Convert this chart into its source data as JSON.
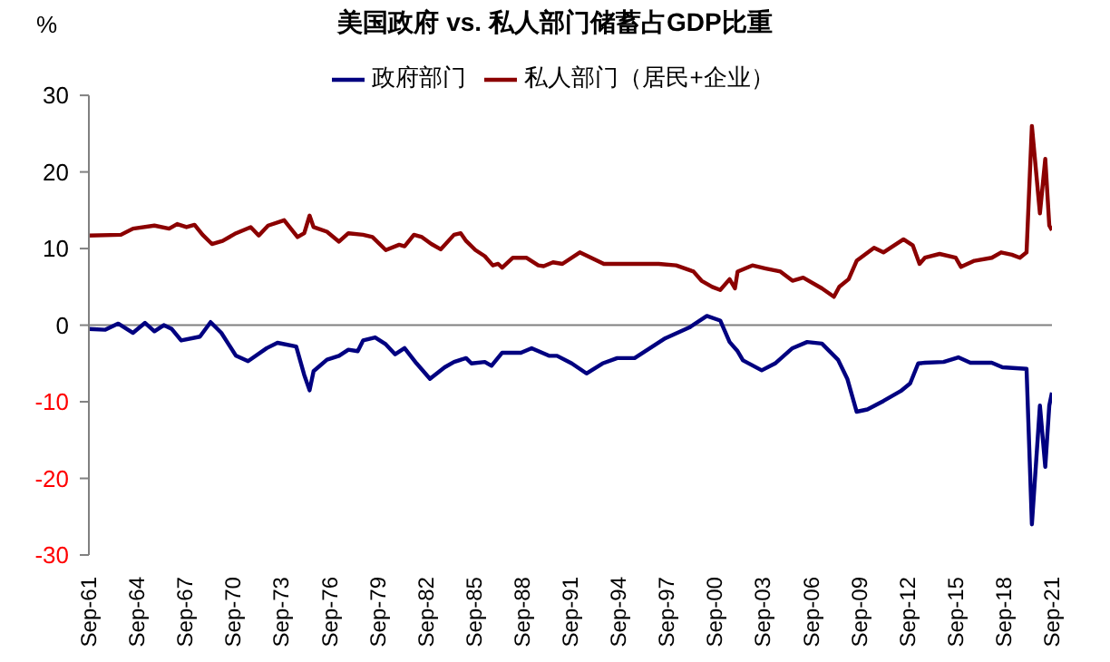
{
  "chart_data": {
    "type": "line",
    "title": "美国政府 vs. 私人部门储蓄占GDP比重",
    "ylabel": "%",
    "xlim": [
      "1961-09",
      "2021-09"
    ],
    "xticks": [
      {
        "value": "1961-09",
        "label": "Sep-61"
      },
      {
        "value": "1964-09",
        "label": "Sep-64"
      },
      {
        "value": "1967-09",
        "label": "Sep-67"
      },
      {
        "value": "1970-09",
        "label": "Sep-70"
      },
      {
        "value": "1973-09",
        "label": "Sep-73"
      },
      {
        "value": "1976-09",
        "label": "Sep-76"
      },
      {
        "value": "1979-09",
        "label": "Sep-79"
      },
      {
        "value": "1982-09",
        "label": "Sep-82"
      },
      {
        "value": "1985-09",
        "label": "Sep-85"
      },
      {
        "value": "1988-09",
        "label": "Sep-88"
      },
      {
        "value": "1991-09",
        "label": "Sep-91"
      },
      {
        "value": "1994-09",
        "label": "Sep-94"
      },
      {
        "value": "1997-09",
        "label": "Sep-97"
      },
      {
        "value": "2000-09",
        "label": "Sep-00"
      },
      {
        "value": "2003-09",
        "label": "Sep-03"
      },
      {
        "value": "2006-09",
        "label": "Sep-06"
      },
      {
        "value": "2009-09",
        "label": "Sep-09"
      },
      {
        "value": "2012-09",
        "label": "Sep-12"
      },
      {
        "value": "2015-09",
        "label": "Sep-15"
      },
      {
        "value": "2018-09",
        "label": "Sep-18"
      },
      {
        "value": "2021-09",
        "label": "Sep-21"
      }
    ],
    "ylim": [
      -30,
      30
    ],
    "yticks": [
      -30,
      -20,
      -10,
      0,
      10,
      20,
      30
    ],
    "grid": false,
    "ref_lines": [
      {
        "axis": "y",
        "value": 0,
        "color": "#808080"
      }
    ],
    "legend": "top",
    "marker": "none",
    "line_style": "solid",
    "series": [
      {
        "name": "私人部门（居民+企业）",
        "color": "#8b0000",
        "x": [
          "1961-09",
          "1963-09",
          "1964-06",
          "1965-10",
          "1966-09",
          "1967-03",
          "1967-10",
          "1968-04",
          "1968-10",
          "1969-05",
          "1970-01",
          "1970-11",
          "1971-10",
          "1972-04",
          "1972-11",
          "1973-11",
          "1974-09",
          "1975-02",
          "1975-06",
          "1975-09",
          "1976-07",
          "1977-04",
          "1977-11",
          "1978-10",
          "1979-05",
          "1980-03",
          "1981-01",
          "1981-05",
          "1981-12",
          "1982-06",
          "1983-01",
          "1983-08",
          "1984-06",
          "1984-11",
          "1985-03",
          "1985-10",
          "1986-05",
          "1986-11",
          "1987-03",
          "1987-06",
          "1988-02",
          "1988-12",
          "1989-09",
          "1990-01",
          "1990-08",
          "1991-03",
          "1992-04",
          "1993-10",
          "1995-05",
          "1997-03",
          "1998-04",
          "1999-05",
          "1999-11",
          "2000-07",
          "2001-01",
          "2001-08",
          "2001-12",
          "2002-02",
          "2003-01",
          "2003-11",
          "2004-10",
          "2005-07",
          "2006-03",
          "2007-05",
          "2008-02",
          "2008-06",
          "2009-01",
          "2009-07",
          "2010-08",
          "2011-03",
          "2012-06",
          "2013-01",
          "2013-06",
          "2013-10",
          "2014-09",
          "2015-09",
          "2016-01",
          "2016-11",
          "2017-12",
          "2018-07",
          "2019-03",
          "2019-09",
          "2020-02",
          "2020-06",
          "2020-12",
          "2021-04",
          "2021-07",
          "2021-09"
        ],
        "values": [
          11.7,
          11.8,
          12.6,
          13.0,
          12.6,
          13.2,
          12.8,
          13.1,
          11.8,
          10.6,
          11.0,
          12.0,
          12.8,
          11.7,
          13.0,
          13.7,
          11.5,
          12.0,
          14.3,
          12.8,
          12.2,
          10.9,
          12.0,
          11.8,
          11.5,
          9.8,
          10.5,
          10.3,
          11.8,
          11.5,
          10.6,
          9.9,
          11.8,
          12.0,
          11.0,
          9.8,
          9.0,
          7.8,
          8.0,
          7.5,
          8.8,
          8.8,
          7.8,
          7.7,
          8.2,
          8.0,
          9.5,
          8.0,
          8.0,
          8.0,
          7.8,
          7.0,
          5.8,
          5.0,
          4.6,
          6.0,
          4.8,
          7.0,
          7.8,
          7.4,
          7.0,
          5.8,
          6.2,
          4.8,
          3.7,
          5.0,
          6.0,
          8.4,
          10.1,
          9.5,
          11.2,
          10.4,
          8.0,
          8.8,
          9.3,
          8.8,
          7.6,
          8.4,
          8.8,
          9.5,
          9.2,
          8.8,
          9.5,
          26.0,
          14.6,
          21.7,
          13.0,
          12.4
        ]
      },
      {
        "name": "政府部门",
        "color": "#000080",
        "x": [
          "1961-09",
          "1962-09",
          "1963-07",
          "1964-06",
          "1965-03",
          "1965-10",
          "1966-05",
          "1966-11",
          "1967-06",
          "1968-08",
          "1969-04",
          "1969-12",
          "1970-11",
          "1971-08",
          "1972-10",
          "1973-06",
          "1974-08",
          "1975-02",
          "1975-06",
          "1975-09",
          "1976-07",
          "1977-04",
          "1977-11",
          "1978-06",
          "1978-10",
          "1979-07",
          "1980-03",
          "1980-10",
          "1981-05",
          "1982-02",
          "1982-12",
          "1983-11",
          "1984-06",
          "1985-03",
          "1985-07",
          "1986-05",
          "1986-10",
          "1987-06",
          "1988-08",
          "1989-04",
          "1990-05",
          "1990-11",
          "1991-10",
          "1992-09",
          "1993-09",
          "1994-08",
          "1995-09",
          "1997-08",
          "1999-02",
          "2000-03",
          "2001-01",
          "2001-08",
          "2002-02",
          "2002-06",
          "2003-08",
          "2004-06",
          "2005-07",
          "2006-06",
          "2007-05",
          "2008-05",
          "2008-12",
          "2009-07",
          "2010-03",
          "2011-03",
          "2012-04",
          "2012-11",
          "2013-05",
          "2013-10",
          "2014-12",
          "2015-11",
          "2016-08",
          "2017-12",
          "2018-08",
          "2020-02",
          "2020-06",
          "2020-12",
          "2021-04",
          "2021-07",
          "2021-09"
        ],
        "values": [
          -0.5,
          -0.6,
          0.2,
          -1.0,
          0.3,
          -0.8,
          0.0,
          -0.5,
          -2.0,
          -1.5,
          0.4,
          -1.0,
          -4.0,
          -4.7,
          -3.0,
          -2.3,
          -2.8,
          -6.5,
          -8.5,
          -6.0,
          -4.5,
          -4.0,
          -3.2,
          -3.4,
          -2.0,
          -1.6,
          -2.5,
          -3.8,
          -3.0,
          -5.0,
          -7.0,
          -5.5,
          -4.8,
          -4.3,
          -5.0,
          -4.8,
          -5.3,
          -3.6,
          -3.6,
          -3.0,
          -4.0,
          -4.0,
          -5.0,
          -6.3,
          -5.0,
          -4.3,
          -4.3,
          -1.7,
          -0.3,
          1.2,
          0.6,
          -2.2,
          -3.4,
          -4.6,
          -5.9,
          -5.0,
          -3.0,
          -2.2,
          -2.4,
          -4.5,
          -7.0,
          -11.3,
          -11.0,
          -9.9,
          -8.6,
          -7.6,
          -5.0,
          -4.9,
          -4.8,
          -4.2,
          -4.9,
          -4.9,
          -5.5,
          -5.7,
          -26.0,
          -10.5,
          -18.5,
          -10.5,
          -8.8
        ]
      }
    ]
  }
}
